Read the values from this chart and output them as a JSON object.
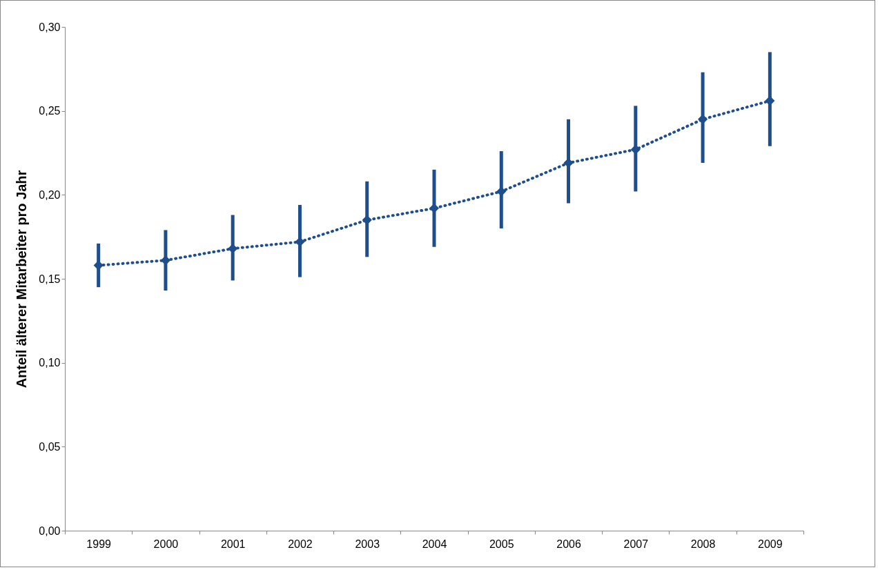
{
  "chart_data": {
    "type": "line",
    "ylabel": "Anteil älterer Mitarbeiter pro Jahr",
    "categories": [
      "1999",
      "2000",
      "2001",
      "2002",
      "2003",
      "2004",
      "2005",
      "2006",
      "2007",
      "2008",
      "2009"
    ],
    "series": [
      {
        "color": "#1f4e8c",
        "values": [
          0.158,
          0.161,
          0.168,
          0.172,
          0.185,
          0.192,
          0.202,
          0.219,
          0.227,
          0.245,
          0.256
        ],
        "errors": [
          [
            0.145,
            0.171
          ],
          [
            0.143,
            0.179
          ],
          [
            0.149,
            0.188
          ],
          [
            0.151,
            0.194
          ],
          [
            0.163,
            0.208
          ],
          [
            0.169,
            0.215
          ],
          [
            0.18,
            0.226
          ],
          [
            0.195,
            0.245
          ],
          [
            0.202,
            0.253
          ],
          [
            0.219,
            0.273
          ],
          [
            0.229,
            0.285
          ]
        ]
      }
    ],
    "ylim": [
      0,
      0.3
    ],
    "yticks": [
      {
        "value": 0,
        "label": "0,00"
      },
      {
        "value": 0.05,
        "label": "0,05"
      },
      {
        "value": 0.1,
        "label": "0,10"
      },
      {
        "value": 0.15,
        "label": "0,15"
      },
      {
        "value": 0.2,
        "label": "0,20"
      },
      {
        "value": 0.25,
        "label": "0,25"
      },
      {
        "value": 0.3,
        "label": "0,30"
      }
    ],
    "grid": false,
    "marker": "diamond",
    "line_style": "dotted"
  }
}
